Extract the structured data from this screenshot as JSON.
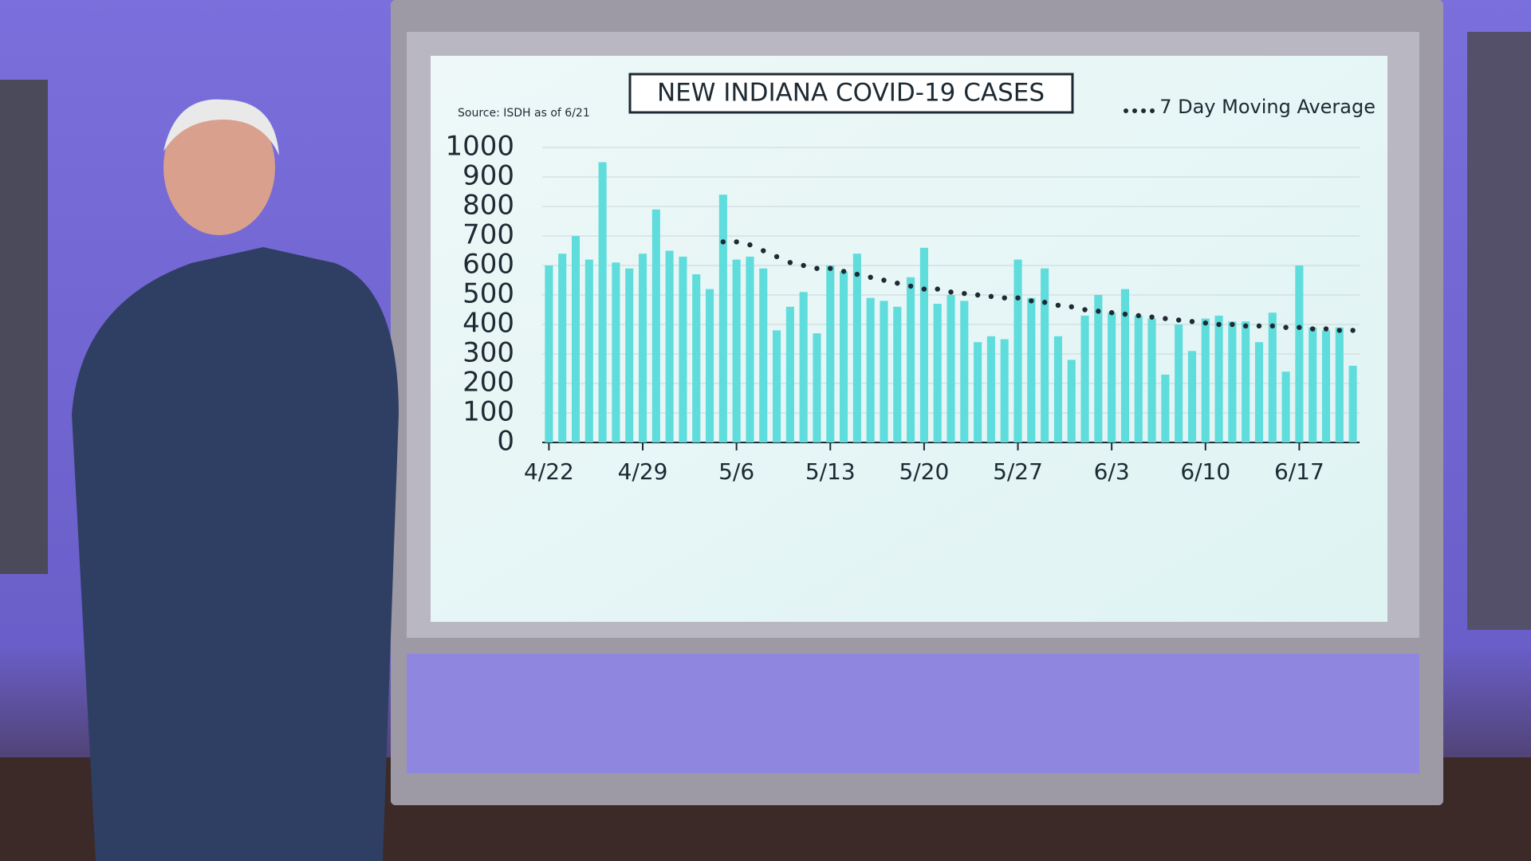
{
  "chart_data": {
    "type": "bar",
    "title": "NEW INDIANA COVID-19 CASES",
    "subtitle": "Source: ISDH as of 6/21",
    "categories": [
      "4/22",
      null,
      null,
      null,
      null,
      null,
      null,
      "4/29",
      null,
      null,
      null,
      null,
      null,
      null,
      "5/6",
      null,
      null,
      null,
      null,
      null,
      null,
      "5/13",
      null,
      null,
      null,
      null,
      null,
      null,
      "5/20",
      null,
      null,
      null,
      null,
      null,
      null,
      "5/27",
      null,
      null,
      null,
      null,
      null,
      null,
      "6/3",
      null,
      null,
      null,
      null,
      null,
      null,
      "6/10",
      null,
      null,
      null,
      null,
      null,
      null,
      "6/17",
      null,
      null,
      null,
      null
    ],
    "values": [
      600,
      640,
      700,
      620,
      950,
      610,
      590,
      640,
      790,
      650,
      630,
      570,
      520,
      840,
      620,
      630,
      590,
      380,
      460,
      510,
      370,
      600,
      580,
      640,
      490,
      480,
      460,
      560,
      660,
      470,
      500,
      480,
      340,
      360,
      350,
      620,
      490,
      590,
      360,
      280,
      430,
      500,
      440,
      520,
      430,
      420,
      230,
      400,
      310,
      420,
      430,
      410,
      410,
      340,
      440,
      240,
      600,
      390,
      380,
      390,
      260
    ],
    "color": "#5fdcdc",
    "series": [
      {
        "name": "7 Day Moving Average",
        "color": "#1f2a33",
        "style": "dotted",
        "values": [
          null,
          null,
          null,
          null,
          null,
          null,
          null,
          null,
          null,
          null,
          null,
          null,
          null,
          680,
          680,
          670,
          650,
          630,
          610,
          600,
          590,
          590,
          580,
          570,
          560,
          550,
          540,
          530,
          520,
          520,
          510,
          505,
          500,
          495,
          490,
          490,
          480,
          475,
          465,
          460,
          450,
          445,
          440,
          435,
          430,
          425,
          420,
          415,
          410,
          405,
          400,
          400,
          395,
          395,
          395,
          390,
          390,
          385,
          385,
          380,
          380
        ]
      }
    ],
    "ylim": [
      0,
      1000
    ],
    "yticks": [
      0,
      100,
      200,
      300,
      400,
      500,
      600,
      700,
      800,
      900,
      1000
    ],
    "grid": true,
    "legend": "top-right"
  }
}
